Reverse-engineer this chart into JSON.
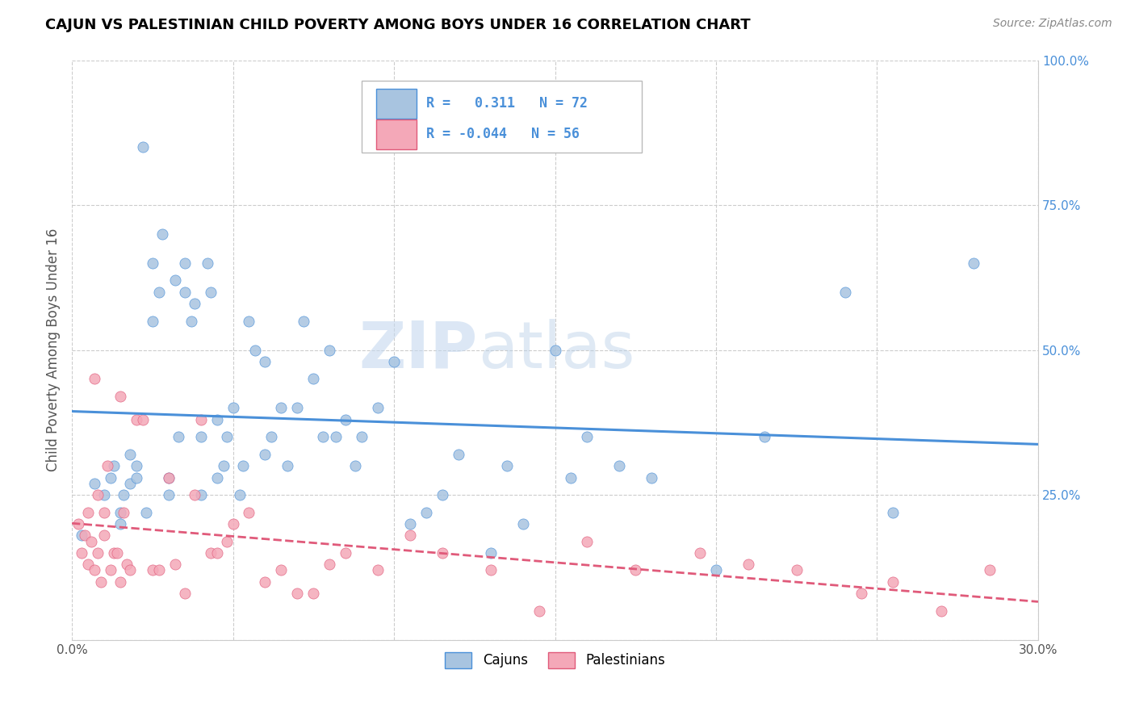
{
  "title": "CAJUN VS PALESTINIAN CHILD POVERTY AMONG BOYS UNDER 16 CORRELATION CHART",
  "source": "Source: ZipAtlas.com",
  "ylabel": "Child Poverty Among Boys Under 16",
  "xlim": [
    0.0,
    0.3
  ],
  "ylim": [
    0.0,
    1.0
  ],
  "x_ticks": [
    0.0,
    0.05,
    0.1,
    0.15,
    0.2,
    0.25,
    0.3
  ],
  "x_tick_labels": [
    "0.0%",
    "",
    "",
    "",
    "",
    "",
    "30.0%"
  ],
  "y_ticks_right": [
    0.0,
    0.25,
    0.5,
    0.75,
    1.0
  ],
  "y_tick_labels_right": [
    "",
    "25.0%",
    "50.0%",
    "75.0%",
    "100.0%"
  ],
  "cajun_R": 0.311,
  "cajun_N": 72,
  "palestinian_R": -0.044,
  "palestinian_N": 56,
  "cajun_color": "#a8c4e0",
  "cajun_line_color": "#4a90d9",
  "palestinian_color": "#f4a8b8",
  "palestinian_line_color": "#e05a7a",
  "watermark": "ZIPatlas",
  "cajun_scatter_x": [
    0.003,
    0.007,
    0.01,
    0.012,
    0.013,
    0.015,
    0.015,
    0.016,
    0.018,
    0.018,
    0.02,
    0.02,
    0.022,
    0.023,
    0.025,
    0.025,
    0.027,
    0.028,
    0.03,
    0.03,
    0.032,
    0.033,
    0.035,
    0.035,
    0.037,
    0.038,
    0.04,
    0.04,
    0.042,
    0.043,
    0.045,
    0.045,
    0.047,
    0.048,
    0.05,
    0.052,
    0.053,
    0.055,
    0.057,
    0.06,
    0.06,
    0.062,
    0.065,
    0.067,
    0.07,
    0.072,
    0.075,
    0.078,
    0.08,
    0.082,
    0.085,
    0.088,
    0.09,
    0.095,
    0.1,
    0.105,
    0.11,
    0.115,
    0.12,
    0.13,
    0.135,
    0.14,
    0.15,
    0.155,
    0.16,
    0.17,
    0.18,
    0.2,
    0.215,
    0.24,
    0.255,
    0.28
  ],
  "cajun_scatter_y": [
    0.18,
    0.27,
    0.25,
    0.28,
    0.3,
    0.2,
    0.22,
    0.25,
    0.32,
    0.27,
    0.28,
    0.3,
    0.85,
    0.22,
    0.65,
    0.55,
    0.6,
    0.7,
    0.25,
    0.28,
    0.62,
    0.35,
    0.6,
    0.65,
    0.55,
    0.58,
    0.25,
    0.35,
    0.65,
    0.6,
    0.28,
    0.38,
    0.3,
    0.35,
    0.4,
    0.25,
    0.3,
    0.55,
    0.5,
    0.32,
    0.48,
    0.35,
    0.4,
    0.3,
    0.4,
    0.55,
    0.45,
    0.35,
    0.5,
    0.35,
    0.38,
    0.3,
    0.35,
    0.4,
    0.48,
    0.2,
    0.22,
    0.25,
    0.32,
    0.15,
    0.3,
    0.2,
    0.5,
    0.28,
    0.35,
    0.3,
    0.28,
    0.12,
    0.35,
    0.6,
    0.22,
    0.65
  ],
  "palestinian_scatter_x": [
    0.002,
    0.003,
    0.004,
    0.005,
    0.005,
    0.006,
    0.007,
    0.007,
    0.008,
    0.008,
    0.009,
    0.01,
    0.01,
    0.011,
    0.012,
    0.013,
    0.014,
    0.015,
    0.015,
    0.016,
    0.017,
    0.018,
    0.02,
    0.022,
    0.025,
    0.027,
    0.03,
    0.032,
    0.035,
    0.038,
    0.04,
    0.043,
    0.045,
    0.048,
    0.05,
    0.055,
    0.06,
    0.065,
    0.07,
    0.075,
    0.08,
    0.085,
    0.095,
    0.105,
    0.115,
    0.13,
    0.145,
    0.16,
    0.175,
    0.195,
    0.21,
    0.225,
    0.245,
    0.255,
    0.27,
    0.285
  ],
  "palestinian_scatter_y": [
    0.2,
    0.15,
    0.18,
    0.22,
    0.13,
    0.17,
    0.12,
    0.45,
    0.25,
    0.15,
    0.1,
    0.18,
    0.22,
    0.3,
    0.12,
    0.15,
    0.15,
    0.42,
    0.1,
    0.22,
    0.13,
    0.12,
    0.38,
    0.38,
    0.12,
    0.12,
    0.28,
    0.13,
    0.08,
    0.25,
    0.38,
    0.15,
    0.15,
    0.17,
    0.2,
    0.22,
    0.1,
    0.12,
    0.08,
    0.08,
    0.13,
    0.15,
    0.12,
    0.18,
    0.15,
    0.12,
    0.05,
    0.17,
    0.12,
    0.15,
    0.13,
    0.12,
    0.08,
    0.1,
    0.05,
    0.12
  ]
}
